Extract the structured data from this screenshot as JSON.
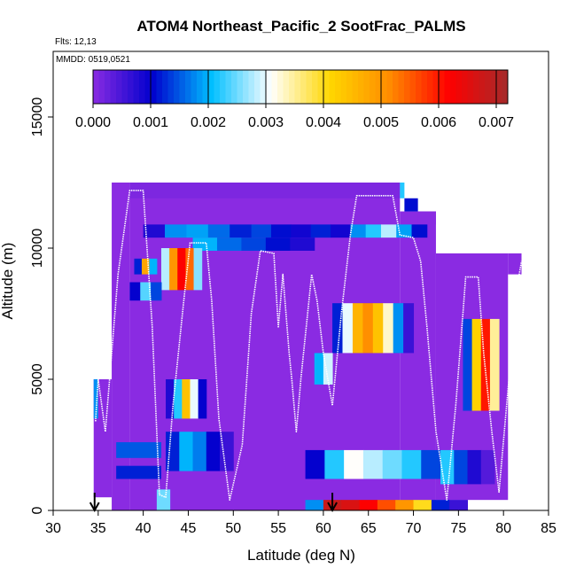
{
  "chart_data": {
    "type": "heatmap",
    "title": "ATOM4 Northeast_Pacific_2 SootFrac_PALMS",
    "subtitle_flights": "Flts: 12,13",
    "subtitle_dates": "MMDD: 0519,0521",
    "xlabel": "Latitude (deg N)",
    "ylabel": "Altitude (m)",
    "xlim": [
      30,
      85
    ],
    "ylim": [
      0,
      17500
    ],
    "x_ticks": [
      "30",
      "35",
      "40",
      "45",
      "50",
      "55",
      "60",
      "65",
      "70",
      "75",
      "80",
      "85"
    ],
    "y_ticks": [
      "0",
      "5000",
      "10000",
      "15000"
    ],
    "colorbar": {
      "min": 0.0,
      "max": 0.0072,
      "ticks": [
        "0.000",
        "0.001",
        "0.002",
        "0.003",
        "0.004",
        "0.005",
        "0.006",
        "0.007"
      ],
      "colors": [
        "#8a2be2",
        "#0000cd",
        "#00bfff",
        "#ffffff",
        "#ffd700",
        "#ff8c00",
        "#ff0000",
        "#a52a2a"
      ]
    },
    "background_value": 0.0,
    "cells": [
      {
        "lat": [
          38.5,
          68.5
        ],
        "alt": [
          11900,
          12500
        ],
        "value": 0.0001
      },
      {
        "lat": [
          68.5,
          69.0
        ],
        "alt": [
          11900,
          12500
        ],
        "value": 0.0022
      },
      {
        "lat": [
          69.0,
          70.5
        ],
        "alt": [
          11400,
          11900
        ],
        "value": 0.0011
      },
      {
        "lat": [
          70.5,
          72.5
        ],
        "alt": [
          10900,
          11400
        ],
        "value": 0.0
      },
      {
        "lat": [
          40.0,
          52.0
        ],
        "alt": [
          10400,
          10900
        ],
        "value": 0.0018,
        "gradient": [
          0.0008,
          0.0018,
          0.0019,
          0.0016,
          0.0012
        ]
      },
      {
        "lat": [
          52.0,
          63.0
        ],
        "alt": [
          10400,
          10900
        ],
        "value": 0.001,
        "gradient": [
          0.0014,
          0.0011,
          0.0009,
          0.0012,
          0.0009
        ]
      },
      {
        "lat": [
          63.0,
          71.5
        ],
        "alt": [
          10400,
          10900
        ],
        "value": 0.002,
        "gradient": [
          0.0018,
          0.0022,
          0.0028,
          0.0019,
          0.0011
        ]
      },
      {
        "lat": [
          45.5,
          59.0
        ],
        "alt": [
          9900,
          10400
        ],
        "value": 0.0017,
        "gradient": [
          0.002,
          0.0016,
          0.0014,
          0.0011,
          0.0008
        ]
      },
      {
        "lat": [
          42.0,
          46.5
        ],
        "alt": [
          8400,
          10000
        ],
        "value": 0.0055,
        "gradient": [
          0.0028,
          0.005,
          0.0062,
          0.0054,
          0.0026
        ]
      },
      {
        "lat": [
          39.0,
          41.5
        ],
        "alt": [
          9000,
          9600
        ],
        "value": 0.0048,
        "gradient": [
          0.0012,
          0.0048,
          0.002
        ]
      },
      {
        "lat": [
          38.5,
          42.0
        ],
        "alt": [
          8000,
          8700
        ],
        "value": 0.0021,
        "gradient": [
          0.001,
          0.0024,
          0.0014
        ]
      },
      {
        "lat": [
          61.0,
          70.0
        ],
        "alt": [
          6000,
          7900
        ],
        "value": 0.0048,
        "gradient": [
          0.0012,
          0.003,
          0.0046,
          0.0051,
          0.0044,
          0.0033,
          0.0018,
          0.0006
        ]
      },
      {
        "lat": [
          59.0,
          61.0
        ],
        "alt": [
          4800,
          6000
        ],
        "value": 0.0022,
        "gradient": [
          0.002,
          0.0029
        ]
      },
      {
        "lat": [
          75.5,
          79.5
        ],
        "alt": [
          3800,
          7300
        ],
        "value": 0.0046,
        "gradient": [
          0.0014,
          0.0042,
          0.006,
          0.0035
        ]
      },
      {
        "lat": [
          42.5,
          47.0
        ],
        "alt": [
          3500,
          5000
        ],
        "value": 0.003,
        "gradient": [
          0.0008,
          0.0022,
          0.0044,
          0.003,
          0.001
        ]
      },
      {
        "lat": [
          34.5,
          35.0
        ],
        "alt": [
          3500,
          5000
        ],
        "value": 0.0018
      },
      {
        "lat": [
          42.5,
          50.0
        ],
        "alt": [
          1500,
          3000
        ],
        "value": 0.0015,
        "gradient": [
          0.0012,
          0.002,
          0.0017,
          0.001,
          0.0006
        ]
      },
      {
        "lat": [
          37.0,
          42.0
        ],
        "alt": [
          2000,
          2600
        ],
        "value": 0.0015
      },
      {
        "lat": [
          37.0,
          42.0
        ],
        "alt": [
          1200,
          1700
        ],
        "value": 0.0012
      },
      {
        "lat": [
          58.0,
          73.0
        ],
        "alt": [
          1200,
          2300
        ],
        "value": 0.0024,
        "gradient": [
          0.001,
          0.0022,
          0.0031,
          0.0028,
          0.0025,
          0.0022,
          0.0014
        ]
      },
      {
        "lat": [
          73.0,
          79.0
        ],
        "alt": [
          1000,
          2300
        ],
        "value": 0.0014,
        "gradient": [
          0.0022,
          0.0014,
          0.0008,
          0.0004
        ]
      },
      {
        "lat": [
          41.5,
          43.0
        ],
        "alt": [
          0,
          800
        ],
        "value": 0.0025
      },
      {
        "lat": [
          58.0,
          76.0
        ],
        "alt": [
          0,
          400
        ],
        "value": 0.0055,
        "gradient": [
          0.0018,
          0.0068,
          0.0066,
          0.0062,
          0.0056,
          0.005,
          0.004,
          0.0012,
          0.0006
        ]
      }
    ],
    "flight_track": [
      [
        34.7,
        3400
      ],
      [
        35.0,
        5000
      ],
      [
        35.8,
        3000
      ],
      [
        37.2,
        9000
      ],
      [
        38.5,
        12200
      ],
      [
        40.0,
        12200
      ],
      [
        41.0,
        7000
      ],
      [
        41.8,
        600
      ],
      [
        42.5,
        500
      ],
      [
        43.3,
        4000
      ],
      [
        44.5,
        8000
      ],
      [
        45.2,
        10200
      ],
      [
        47.0,
        10200
      ],
      [
        47.6,
        8000
      ],
      [
        48.4,
        3500
      ],
      [
        49.6,
        400
      ],
      [
        51.0,
        2500
      ],
      [
        52.0,
        7500
      ],
      [
        53.0,
        9900
      ],
      [
        54.5,
        9800
      ],
      [
        55.0,
        7000
      ],
      [
        55.5,
        9000
      ],
      [
        56.2,
        6000
      ],
      [
        56.5,
        5000
      ],
      [
        57.0,
        3000
      ],
      [
        57.5,
        5000
      ],
      [
        58.7,
        9000
      ],
      [
        59.3,
        8000
      ],
      [
        60.0,
        6000
      ],
      [
        61.0,
        4000
      ],
      [
        62.0,
        7500
      ],
      [
        63.0,
        10500
      ],
      [
        63.7,
        12000
      ],
      [
        67.7,
        12000
      ],
      [
        68.5,
        10500
      ],
      [
        70.0,
        10400
      ],
      [
        70.8,
        9500
      ],
      [
        71.5,
        7000
      ],
      [
        72.5,
        3000
      ],
      [
        73.7,
        400
      ],
      [
        74.7,
        4000
      ],
      [
        75.5,
        7500
      ],
      [
        75.8,
        8900
      ],
      [
        77.2,
        8900
      ],
      [
        77.8,
        6000
      ],
      [
        78.7,
        3000
      ],
      [
        79.5,
        700
      ],
      [
        80.6,
        5000
      ],
      [
        81.5,
        8500
      ],
      [
        82.0,
        9500
      ]
    ],
    "arrows": [
      {
        "lat": 34.6,
        "direction": "down"
      },
      {
        "lat": 61.0,
        "direction": "down"
      }
    ]
  }
}
